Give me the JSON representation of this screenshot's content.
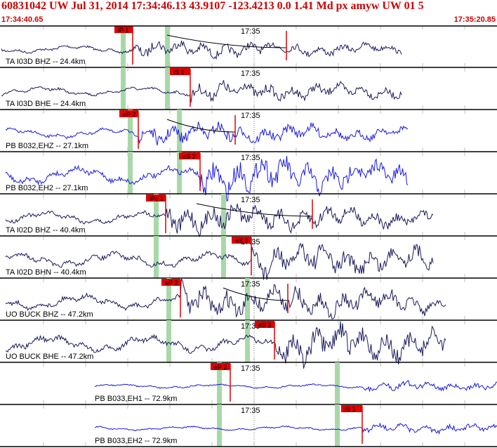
{
  "header": {
    "title": "60831042 UW Jul 31, 2014 17:34:46.13    43.9107 -123.4213  0.0 1.41 Md px amyw UW 01    5",
    "start_time": "17:34:40.65",
    "end_time": "17:35:20.85"
  },
  "minute_mark": "17:35",
  "colors": {
    "red": "#e00000",
    "navy": "#1a1a5e",
    "blue": "#1a1ae0",
    "green": "#a8d8a8",
    "grid": "#bfbfbf"
  },
  "traces": [
    {
      "label": "TA I03D BHZ -- 24.4km",
      "color": "navy",
      "pick": "iP 1",
      "coda": true
    },
    {
      "label": "TA I03D BHE -- 24.4km",
      "color": "navy",
      "pick": "iS 1",
      "coda": false
    },
    {
      "label": "PB B032,EHZ -- 27.1km",
      "color": "blue",
      "pick": "eP 2",
      "coda": true
    },
    {
      "label": "PB B032,EH2 -- 27.1km",
      "color": "blue",
      "pick": "eS 2",
      "coda": false
    },
    {
      "label": "TA I02D BHZ -- 40.4km",
      "color": "navy",
      "pick": "iPc 1",
      "coda": true
    },
    {
      "label": "TA I02D BHN -- 40.4km",
      "color": "navy",
      "pick": "eS 2",
      "coda": false
    },
    {
      "label": "UO BUCK BHZ -- 47.2km",
      "color": "navy",
      "pick": "eP 2",
      "coda": true
    },
    {
      "label": "UO BUCK BHE -- 47.2km",
      "color": "navy",
      "pick": "eS 2",
      "coda": false
    },
    {
      "label": "PB B033,EH1 -- 72.9km",
      "color": "blue",
      "pick": "eP 2",
      "coda": false
    },
    {
      "label": "PB B033,EH2 -- 72.9km",
      "color": "blue",
      "pick": "iS 1",
      "coda": false
    }
  ]
}
